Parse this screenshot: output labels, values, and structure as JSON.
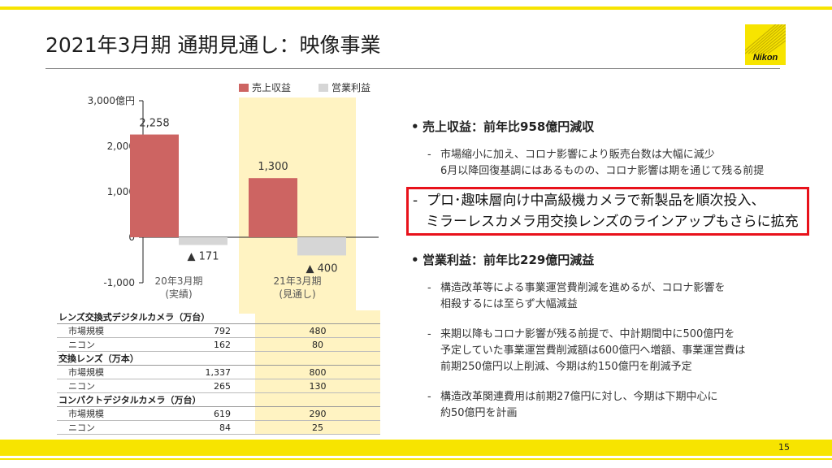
{
  "page": {
    "title": "2021年3月期 通期見通し：映像事業",
    "logo_text": "Nikon",
    "page_number": "15",
    "colors": {
      "accent_yellow": "#f7e400",
      "highlight_red": "#e8121b"
    }
  },
  "chart_data": {
    "type": "bar",
    "ylim": [
      -1000,
      3000
    ],
    "yticks": [
      {
        "value": 3000,
        "label": "3,000億円"
      },
      {
        "value": 2000,
        "label": "2,000"
      },
      {
        "value": 1000,
        "label": "1,000"
      },
      {
        "value": 0,
        "label": "0"
      },
      {
        "value": -1000,
        "label": "-1,000"
      }
    ],
    "categories": [
      {
        "line1": "20年3月期",
        "line2": "(実績)"
      },
      {
        "line1": "21年3月期",
        "line2": "(見通し)"
      }
    ],
    "highlighted_category": 1,
    "series": [
      {
        "name": "売上収益",
        "color": "#cd6462",
        "values": [
          2258,
          1300
        ],
        "labels": [
          "2,258",
          "1,300"
        ]
      },
      {
        "name": "営業利益",
        "color": "#d6d6d6",
        "values": [
          -171,
          -400
        ],
        "labels": [
          "▲ 171",
          "▲ 400"
        ]
      }
    ],
    "legend": "top",
    "grid": false
  },
  "table": {
    "groups": [
      {
        "title": "レンズ交換式デジタルカメラ（万台）",
        "rows": [
          {
            "name": "市場規模",
            "v1": "792",
            "v2": "480"
          },
          {
            "name": "ニコン",
            "v1": "162",
            "v2": "80"
          }
        ]
      },
      {
        "title": "交換レンズ（万本）",
        "rows": [
          {
            "name": "市場規模",
            "v1": "1,337",
            "v2": "800"
          },
          {
            "name": "ニコン",
            "v1": "265",
            "v2": "130"
          }
        ]
      },
      {
        "title": "コンパクトデジタルカメラ（万台）",
        "rows": [
          {
            "name": "市場規模",
            "v1": "619",
            "v2": "290"
          },
          {
            "name": "ニコン",
            "v1": "84",
            "v2": "25"
          }
        ]
      }
    ]
  },
  "bullets": {
    "revenue": {
      "heading": "売上収益：前年比958億円減収",
      "item1_line1": "市場縮小に加え、コロナ影響により販売台数は大幅に減少",
      "item1_line2": "6月以降回復基調にはあるものの、コロナ影響は期を通じて残る前提",
      "highlight_line1": "プロ･趣味層向け中高級機カメラで新製品を順次投入、",
      "highlight_line2": "ミラーレスカメラ用交換レンズのラインアップもさらに拡充"
    },
    "profit": {
      "heading": "営業利益：前年比229億円減益",
      "item1_line1": "構造改革等による事業運営費削減を進めるが、コロナ影響を",
      "item1_line2": "相殺するには至らず大幅減益",
      "item2_line1": "来期以降もコロナ影響が残る前提で、中計期間中に500億円を",
      "item2_line2": "予定していた事業運営費削減額は600億円へ増額、事業運営費は",
      "item2_line3": "前期250億円以上削減、今期は約150億円を削減予定",
      "item3_line1": "構造改革関連費用は前期27億円に対し、今期は下期中心に",
      "item3_line2": "約50億円を計画"
    },
    "dash": "-",
    "dot": "•"
  }
}
